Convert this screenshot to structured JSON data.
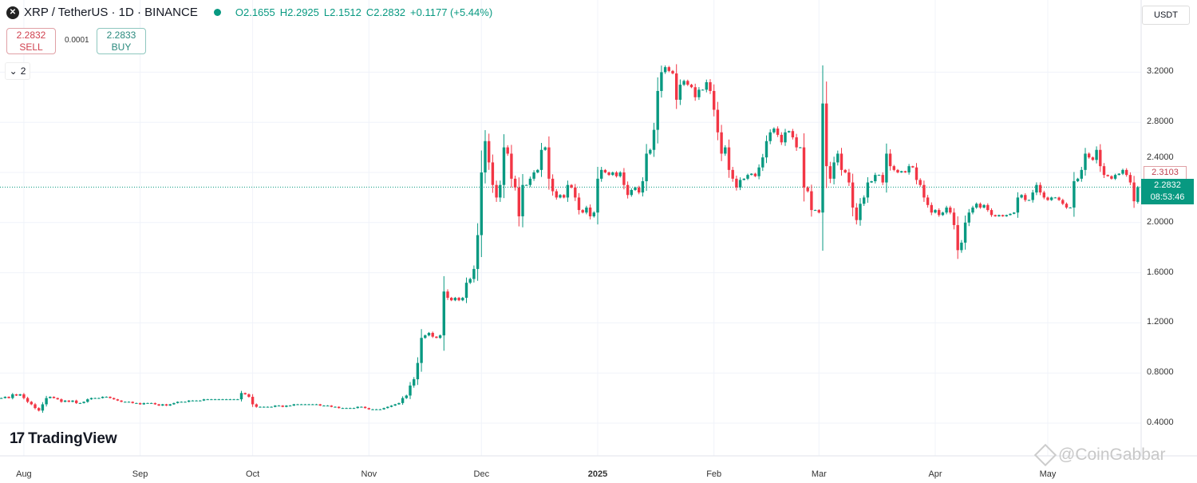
{
  "header": {
    "symbol": "XRP / TetherUS · 1D · BINANCE",
    "open": "O2.1655",
    "high": "H2.2925",
    "low": "L2.1512",
    "close": "C2.2832",
    "change": "+0.1177 (+5.44%)",
    "currency": "USDT"
  },
  "trade": {
    "sell_price": "2.2832",
    "sell_label": "SELL",
    "spread": "0.0001",
    "buy_price": "2.2833",
    "buy_label": "BUY",
    "indicators_toggle": "2"
  },
  "price_labels": {
    "previous_close": "2.3103",
    "current_price": "2.2832",
    "countdown": "08:53:46"
  },
  "branding": {
    "logo_text": "TradingView",
    "watermark": "@CoinGabbar"
  },
  "colors": {
    "up": "#089981",
    "down": "#f23645",
    "grid": "#f0f3fa",
    "price_line": "#089981"
  },
  "chart_data": {
    "type": "candlestick",
    "interval": "1D",
    "start_date": "2024-07-25",
    "end_date": "2025-05-25",
    "ylim": [
      0.3,
      3.5
    ],
    "y_ticks": [
      "3.2000",
      "2.8000",
      "2.4000",
      "2.0000",
      "1.6000",
      "1.2000",
      "0.8000",
      "0.4000"
    ],
    "x_ticks": [
      {
        "label": "Aug",
        "date": "2024-08-01"
      },
      {
        "label": "Sep",
        "date": "2024-09-01"
      },
      {
        "label": "Oct",
        "date": "2024-10-01"
      },
      {
        "label": "Nov",
        "date": "2024-11-01"
      },
      {
        "label": "Dec",
        "date": "2024-12-01"
      },
      {
        "label": "2025",
        "date": "2025-01-01",
        "bold": true
      },
      {
        "label": "Feb",
        "date": "2025-02-01"
      },
      {
        "label": "Mar",
        "date": "2025-03-01"
      },
      {
        "label": "Apr",
        "date": "2025-04-01"
      },
      {
        "label": "May",
        "date": "2025-05-01"
      }
    ],
    "grid": true,
    "daily_closes": [
      0.6,
      0.6,
      0.61,
      0.6,
      0.63,
      0.62,
      0.63,
      0.6,
      0.57,
      0.55,
      0.52,
      0.5,
      0.55,
      0.6,
      0.61,
      0.6,
      0.59,
      0.57,
      0.58,
      0.57,
      0.58,
      0.56,
      0.56,
      0.57,
      0.59,
      0.6,
      0.6,
      0.6,
      0.61,
      0.61,
      0.6,
      0.59,
      0.58,
      0.57,
      0.57,
      0.57,
      0.56,
      0.56,
      0.55,
      0.56,
      0.56,
      0.56,
      0.55,
      0.54,
      0.55,
      0.54,
      0.55,
      0.56,
      0.57,
      0.57,
      0.57,
      0.58,
      0.58,
      0.58,
      0.58,
      0.59,
      0.59,
      0.59,
      0.59,
      0.59,
      0.59,
      0.59,
      0.59,
      0.59,
      0.59,
      0.64,
      0.63,
      0.61,
      0.55,
      0.53,
      0.53,
      0.53,
      0.53,
      0.53,
      0.54,
      0.54,
      0.53,
      0.54,
      0.54,
      0.55,
      0.55,
      0.55,
      0.55,
      0.55,
      0.55,
      0.55,
      0.54,
      0.54,
      0.54,
      0.53,
      0.53,
      0.52,
      0.52,
      0.52,
      0.52,
      0.52,
      0.53,
      0.53,
      0.52,
      0.51,
      0.51,
      0.51,
      0.51,
      0.52,
      0.53,
      0.54,
      0.55,
      0.56,
      0.6,
      0.62,
      0.7,
      0.75,
      0.88,
      1.08,
      1.1,
      1.12,
      1.09,
      1.08,
      1.1,
      1.45,
      1.4,
      1.38,
      1.4,
      1.38,
      1.4,
      1.52,
      1.55,
      1.63,
      1.9,
      2.4,
      2.65,
      2.48,
      2.3,
      2.2,
      2.3,
      2.6,
      2.55,
      2.35,
      2.28,
      2.05,
      2.3,
      2.3,
      2.35,
      2.4,
      2.42,
      2.58,
      2.6,
      2.35,
      2.25,
      2.2,
      2.22,
      2.2,
      2.3,
      2.28,
      2.2,
      2.1,
      2.08,
      2.12,
      2.05,
      2.08,
      2.35,
      2.42,
      2.4,
      2.38,
      2.4,
      2.37,
      2.4,
      2.3,
      2.22,
      2.26,
      2.28,
      2.24,
      2.33,
      2.55,
      2.58,
      2.74,
      3.05,
      3.2,
      3.24,
      3.21,
      3.19,
      2.98,
      3.1,
      3.13,
      3.1,
      3.08,
      3.0,
      3.06,
      3.06,
      3.12,
      3.05,
      2.9,
      2.72,
      2.55,
      2.6,
      2.42,
      2.35,
      2.28,
      2.34,
      2.35,
      2.38,
      2.39,
      2.37,
      2.44,
      2.52,
      2.65,
      2.72,
      2.75,
      2.7,
      2.64,
      2.72,
      2.73,
      2.68,
      2.6,
      2.6,
      2.28,
      2.25,
      2.1,
      2.1,
      2.08,
      2.95,
      2.45,
      2.35,
      2.48,
      2.55,
      2.42,
      2.4,
      2.32,
      2.12,
      2.02,
      2.15,
      2.2,
      2.32,
      2.33,
      2.38,
      2.38,
      2.32,
      2.55,
      2.45,
      2.42,
      2.4,
      2.41,
      2.4,
      2.45,
      2.44,
      2.34,
      2.3,
      2.2,
      2.14,
      2.08,
      2.1,
      2.06,
      2.08,
      2.12,
      2.08,
      1.98,
      1.78,
      1.84,
      2.0,
      2.08,
      2.12,
      2.15,
      2.12,
      2.14,
      2.1,
      2.06,
      2.05,
      2.06,
      2.05,
      2.06,
      2.07,
      2.08,
      2.2,
      2.22,
      2.18,
      2.18,
      2.24,
      2.3,
      2.24,
      2.2,
      2.18,
      2.2,
      2.2,
      2.18,
      2.15,
      2.12,
      2.12,
      2.33,
      2.35,
      2.42,
      2.55,
      2.52,
      2.5,
      2.58,
      2.45,
      2.38,
      2.37,
      2.35,
      2.38,
      2.39,
      2.42,
      2.38,
      2.32,
      2.17,
      2.2832
    ],
    "last_candle": {
      "open": 2.1655,
      "high": 2.2925,
      "low": 2.1512,
      "close": 2.2832
    },
    "current_price": 2.2832
  }
}
